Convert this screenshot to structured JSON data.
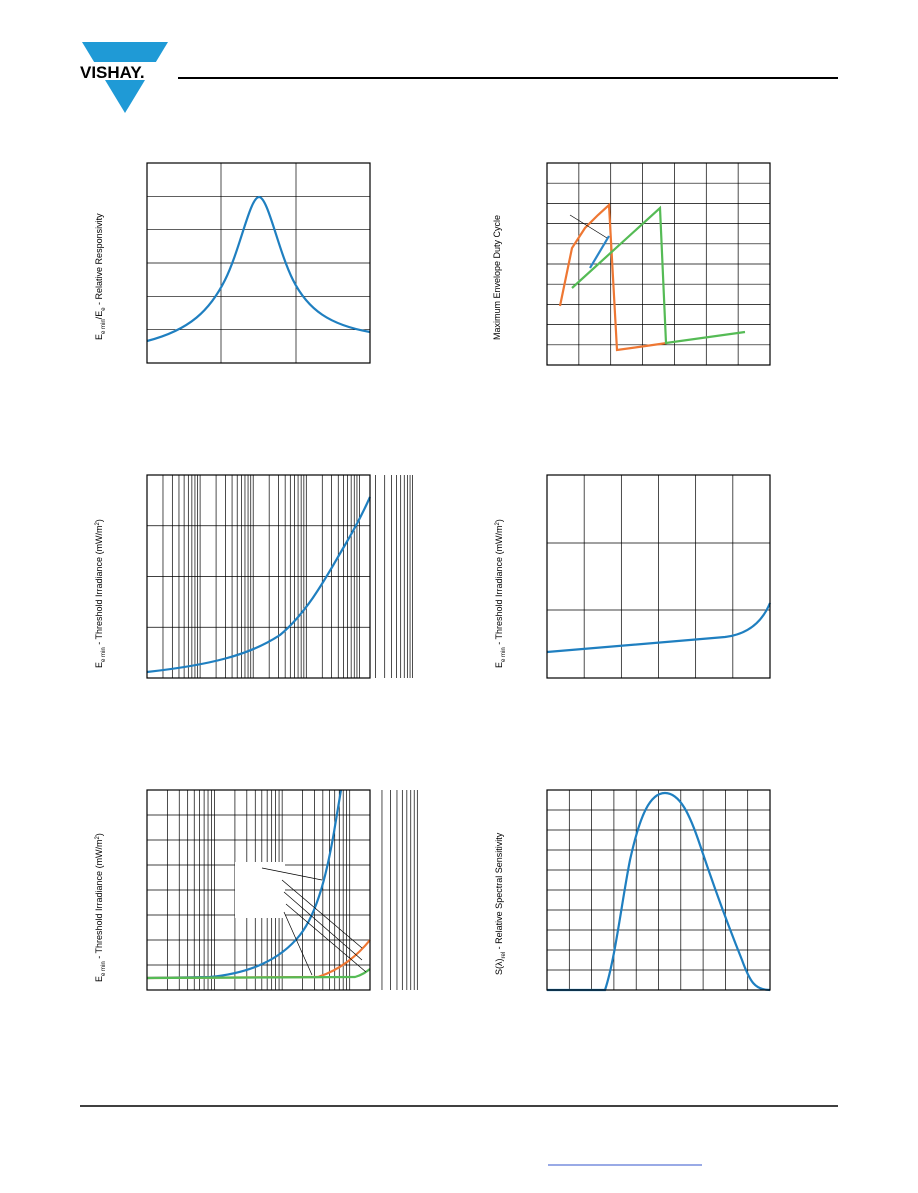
{
  "header": {
    "logo": "VISHAY."
  },
  "figures": [
    {
      "y_label": [
        "E",
        "e min",
        "/E",
        "e",
        " - Relative Responsivity"
      ]
    },
    {
      "y_label": [
        "Maximum Envelope Duty Cycle"
      ]
    },
    {
      "y_label": [
        "E",
        "e min",
        " - Threshold Irradiance (mW/m",
        "2",
        ")"
      ]
    },
    {
      "y_label": [
        "E",
        "e min",
        " - Threshold Irradiance (mW/m",
        "2",
        ")"
      ]
    },
    {
      "y_label": [
        "E",
        "e min",
        " - Threshold Irradiance (mW/m",
        "2",
        ")"
      ]
    },
    {
      "y_label": [
        "S(λ)",
        "rel",
        " - Relative Spectral Sensitivity"
      ]
    }
  ]
}
